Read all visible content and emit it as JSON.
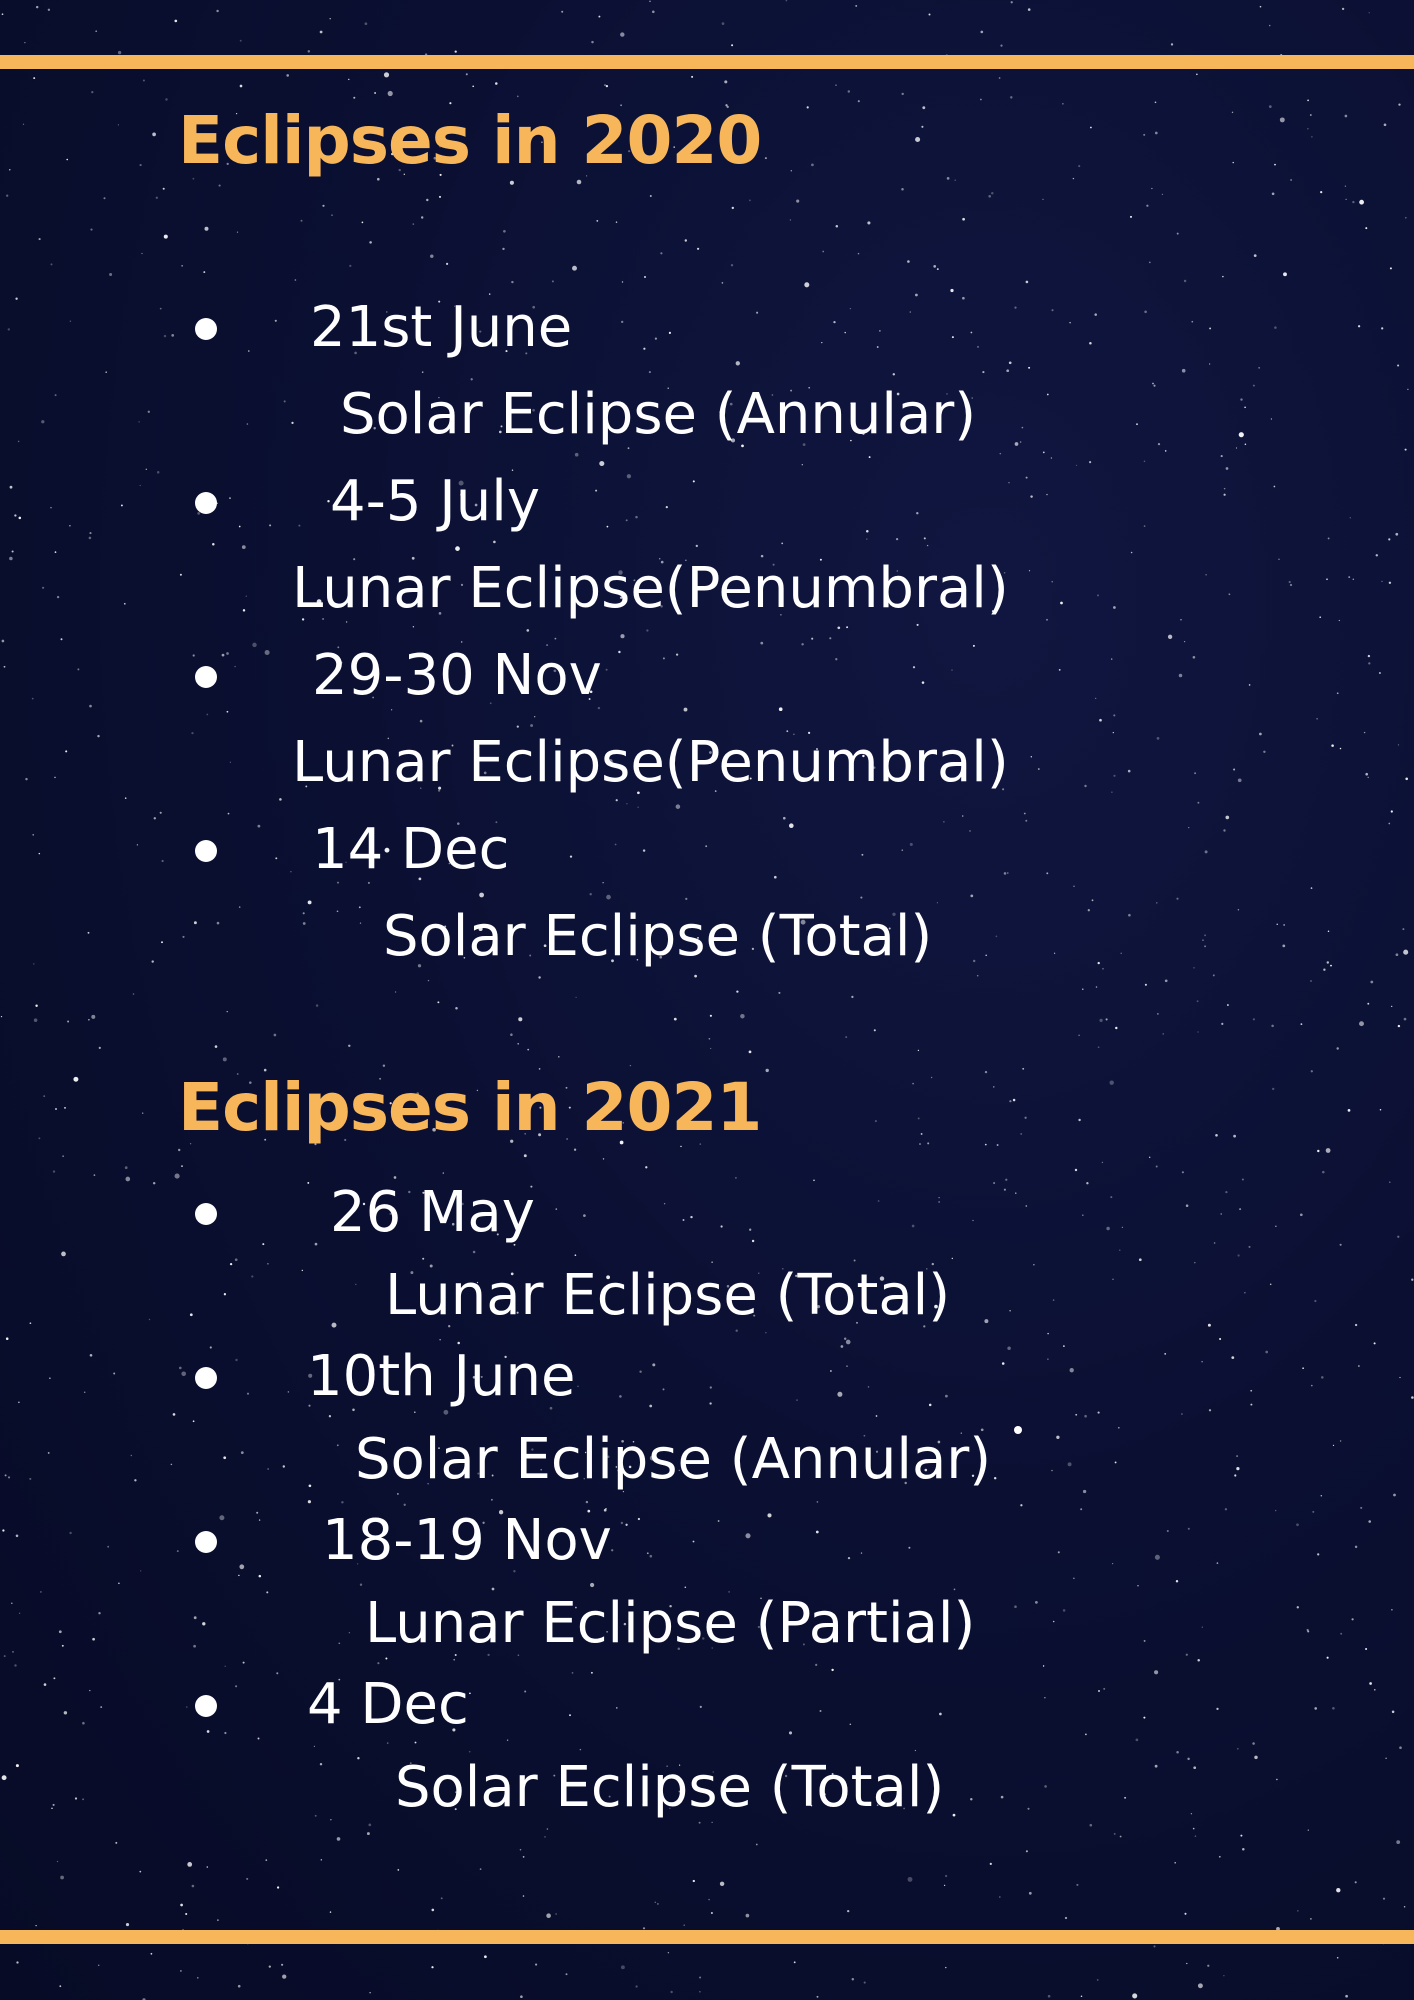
{
  "colors": {
    "accent": "#f7b65a",
    "background": "#0b1033",
    "text": "#ffffff"
  },
  "section_2020": {
    "title": "Eclipses in 2020",
    "items": [
      {
        "date": "21st June",
        "type": "Solar Eclipse (Annular)"
      },
      {
        "date": "4-5 July",
        "type": "Lunar Eclipse(Penumbral)"
      },
      {
        "date": "29-30 Nov",
        "type": "Lunar Eclipse(Penumbral)"
      },
      {
        "date": "14 Dec",
        "type": "Solar Eclipse (Total)"
      }
    ]
  },
  "section_2021": {
    "title": "Eclipses in 2021",
    "items": [
      {
        "date": "26 May",
        "type": "Lunar Eclipse (Total)"
      },
      {
        "date": "10th June",
        "type": "Solar Eclipse (Annular)"
      },
      {
        "date": "18-19 Nov",
        "type": "Lunar Eclipse (Partial)"
      },
      {
        "date": "4 Dec",
        "type": "Solar Eclipse (Total)"
      }
    ]
  }
}
